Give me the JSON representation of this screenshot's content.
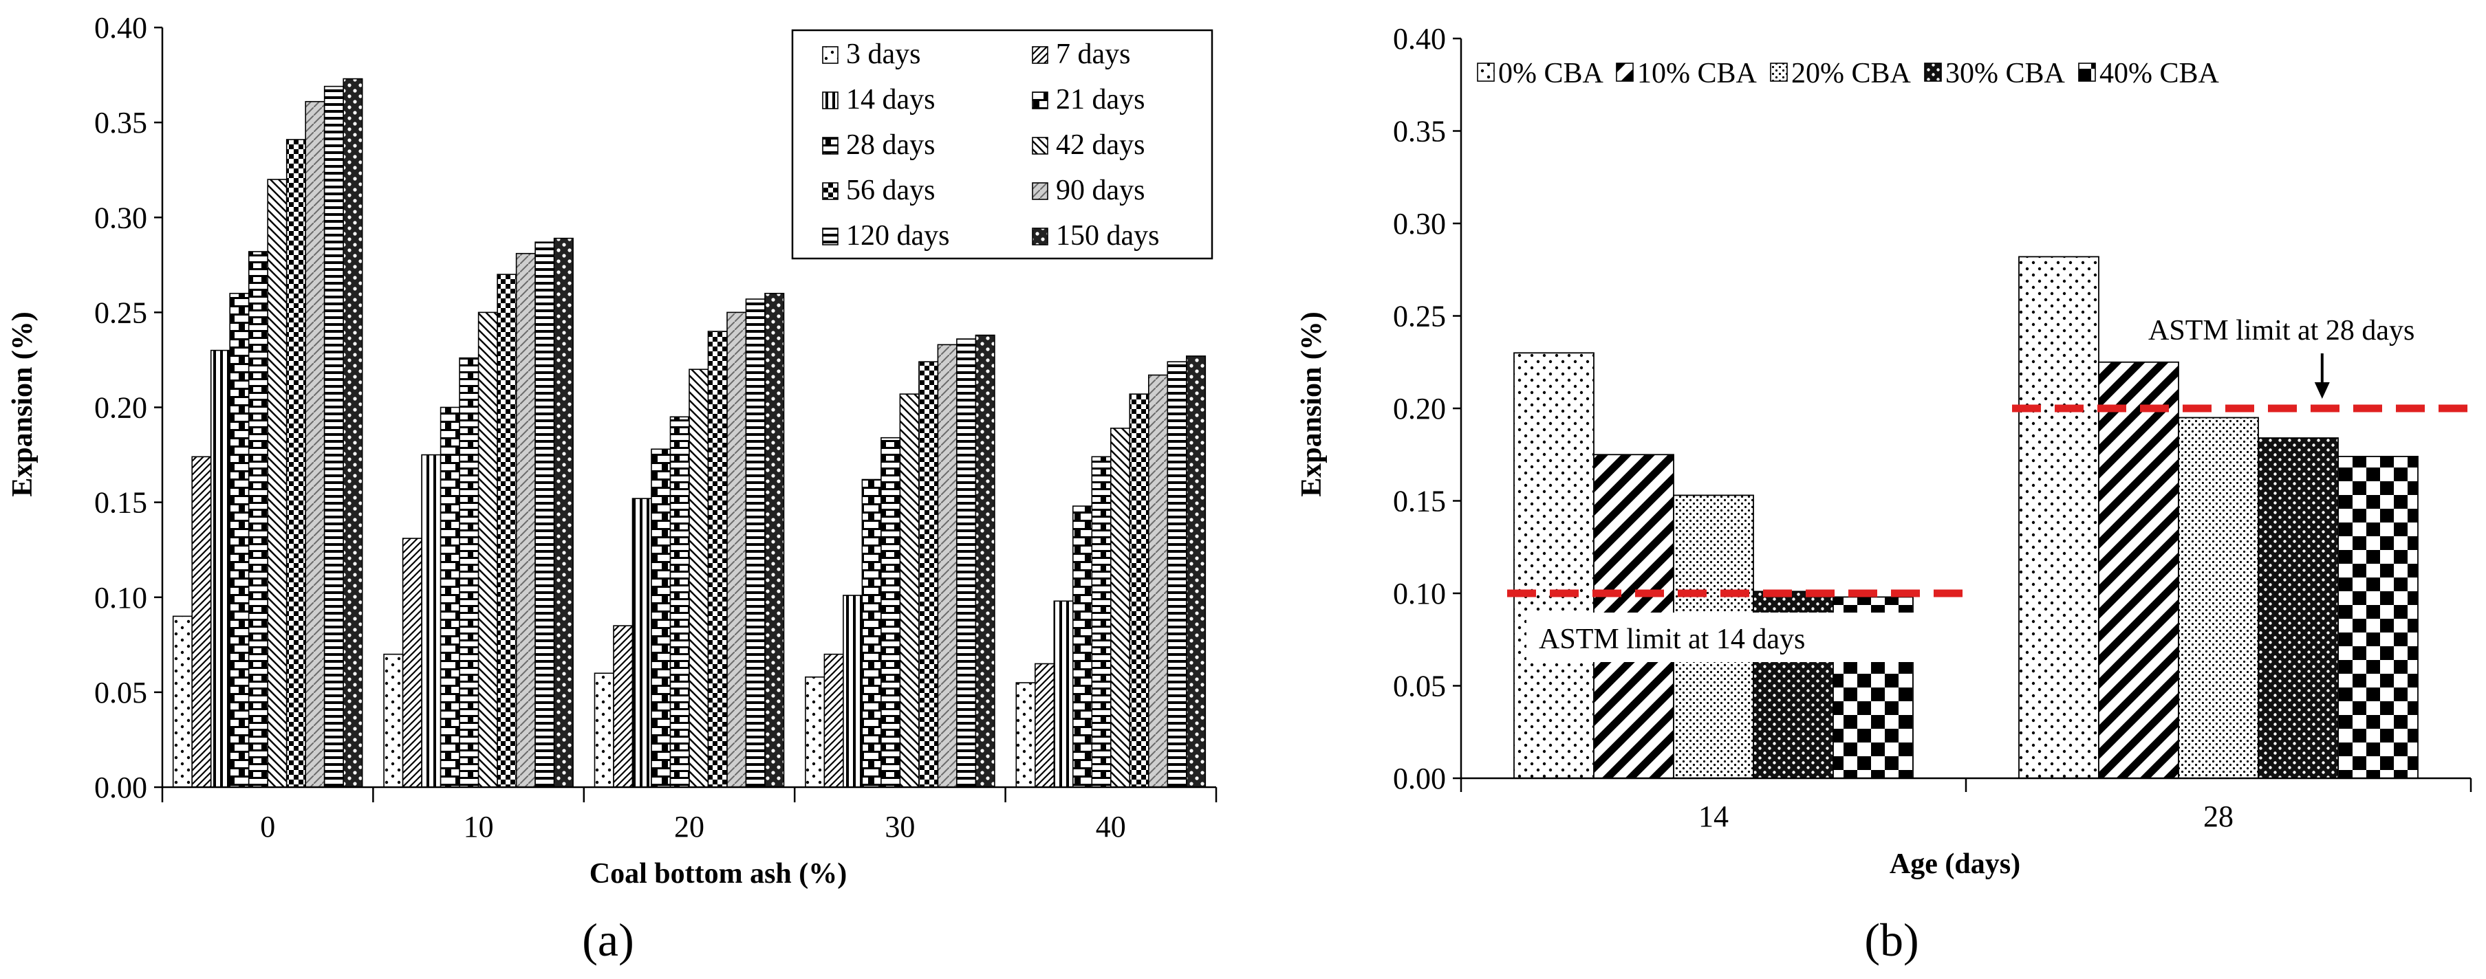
{
  "chart_data": [
    {
      "panel_label": "(a)",
      "type": "bar",
      "title": "",
      "xlabel": "Coal bottom ash (%)",
      "ylabel": "Expansion (%)",
      "ylim": [
        0,
        0.4
      ],
      "yticks": [
        "0.00",
        "0.05",
        "0.10",
        "0.15",
        "0.20",
        "0.25",
        "0.30",
        "0.35",
        "0.40"
      ],
      "categories": [
        "0",
        "10",
        "20",
        "30",
        "40"
      ],
      "legend_position": "top-right",
      "series": [
        {
          "name": "3 days",
          "pattern": "dots-sparse",
          "values": [
            0.09,
            0.07,
            0.06,
            0.058,
            0.055
          ]
        },
        {
          "name": "7 days",
          "pattern": "diag-fine",
          "values": [
            0.174,
            0.131,
            0.085,
            0.07,
            0.065
          ]
        },
        {
          "name": "14 days",
          "pattern": "vertical",
          "values": [
            0.23,
            0.175,
            0.152,
            0.101,
            0.098
          ]
        },
        {
          "name": "21 days",
          "pattern": "brick",
          "values": [
            0.26,
            0.2,
            0.178,
            0.162,
            0.148
          ]
        },
        {
          "name": "28 days",
          "pattern": "horiz-half",
          "values": [
            0.282,
            0.226,
            0.195,
            0.184,
            0.174
          ]
        },
        {
          "name": "42 days",
          "pattern": "diag-back",
          "values": [
            0.32,
            0.25,
            0.22,
            0.207,
            0.189
          ]
        },
        {
          "name": "56 days",
          "pattern": "checker-small",
          "values": [
            0.341,
            0.27,
            0.24,
            0.224,
            0.207
          ]
        },
        {
          "name": "90 days",
          "pattern": "gray-hatch",
          "values": [
            0.361,
            0.281,
            0.25,
            0.233,
            0.217
          ]
        },
        {
          "name": "120 days",
          "pattern": "horiz-lines",
          "values": [
            0.369,
            0.287,
            0.257,
            0.236,
            0.224
          ]
        },
        {
          "name": "150 days",
          "pattern": "checker-dark",
          "values": [
            0.373,
            0.289,
            0.26,
            0.238,
            0.227
          ]
        }
      ]
    },
    {
      "panel_label": "(b)",
      "type": "bar",
      "title": "",
      "xlabel": "Age (days)",
      "ylabel": "Expansion (%)",
      "ylim": [
        0,
        0.4
      ],
      "yticks": [
        "0.00",
        "0.05",
        "0.10",
        "0.15",
        "0.20",
        "0.25",
        "0.30",
        "0.35",
        "0.40"
      ],
      "categories": [
        "14",
        "28"
      ],
      "legend_position": "top",
      "series": [
        {
          "name": "0% CBA",
          "pattern": "dots-sparse",
          "values": [
            0.23,
            0.282
          ]
        },
        {
          "name": "10% CBA",
          "pattern": "diag-thick",
          "values": [
            0.175,
            0.225
          ]
        },
        {
          "name": "20% CBA",
          "pattern": "dots-dense",
          "values": [
            0.153,
            0.195
          ]
        },
        {
          "name": "30% CBA",
          "pattern": "crosshatch",
          "values": [
            0.101,
            0.184
          ]
        },
        {
          "name": "40% CBA",
          "pattern": "checker-big",
          "values": [
            0.098,
            0.174
          ]
        }
      ],
      "reference_lines": [
        {
          "category": "14",
          "value": 0.1,
          "label": "ASTM limit at 14 days",
          "color": "#e02020"
        },
        {
          "category": "28",
          "value": 0.2,
          "label": "ASTM limit at 28 days",
          "color": "#e02020"
        }
      ]
    }
  ]
}
